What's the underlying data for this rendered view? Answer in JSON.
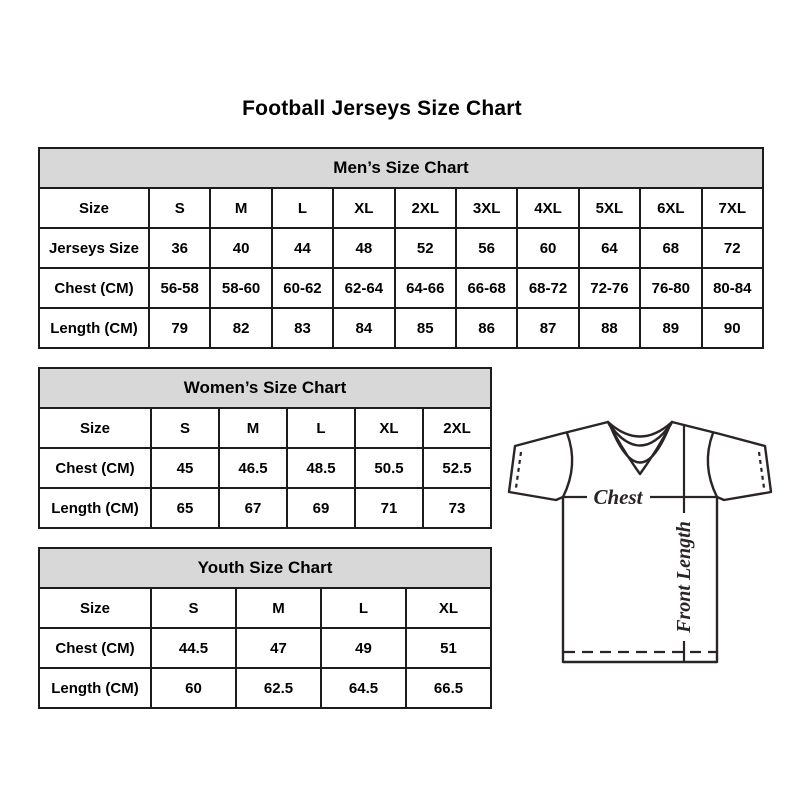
{
  "page": {
    "title": "Football Jerseys Size Chart"
  },
  "tables": [
    {
      "id": "mens",
      "title": "Men’s Size Chart",
      "rows": [
        [
          "Size",
          "S",
          "M",
          "L",
          "XL",
          "2XL",
          "3XL",
          "4XL",
          "5XL",
          "6XL",
          "7XL"
        ],
        [
          "Jerseys Size",
          "36",
          "40",
          "44",
          "48",
          "52",
          "56",
          "60",
          "64",
          "68",
          "72"
        ],
        [
          "Chest (CM)",
          "56-58",
          "58-60",
          "60-62",
          "62-64",
          "64-66",
          "66-68",
          "68-72",
          "72-76",
          "76-80",
          "80-84"
        ],
        [
          "Length (CM)",
          "79",
          "82",
          "83",
          "84",
          "85",
          "86",
          "87",
          "88",
          "89",
          "90"
        ]
      ]
    },
    {
      "id": "womens",
      "title": "Women’s Size Chart",
      "rows": [
        [
          "Size",
          "S",
          "M",
          "L",
          "XL",
          "2XL"
        ],
        [
          "Chest (CM)",
          "45",
          "46.5",
          "48.5",
          "50.5",
          "52.5"
        ],
        [
          "Length (CM)",
          "65",
          "67",
          "69",
          "71",
          "73"
        ]
      ]
    },
    {
      "id": "youth",
      "title": "Youth Size Chart",
      "rows": [
        [
          "Size",
          "S",
          "M",
          "L",
          "XL"
        ],
        [
          "Chest (CM)",
          "44.5",
          "47",
          "49",
          "51"
        ],
        [
          "Length (CM)",
          "60",
          "62.5",
          "64.5",
          "66.5"
        ]
      ]
    }
  ],
  "diagram": {
    "chest_label": "Chest",
    "front_length_label": "Front Length"
  },
  "colors": {
    "table_header_bg": "#d8d8d8",
    "table_border": "#1c1c1c",
    "text": "#000000",
    "diagram_stroke": "#2a2424"
  }
}
